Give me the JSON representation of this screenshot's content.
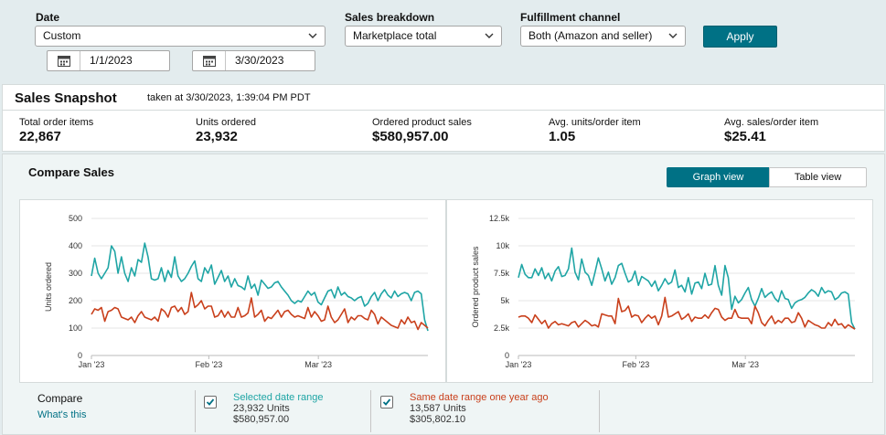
{
  "filters": {
    "date_label": "Date",
    "date_value": "Custom",
    "start_date": "1/1/2023",
    "end_date": "3/30/2023",
    "breakdown_label": "Sales breakdown",
    "breakdown_value": "Marketplace total",
    "fulfillment_label": "Fulfillment channel",
    "fulfillment_value": "Both (Amazon and seller)",
    "apply_label": "Apply"
  },
  "snapshot": {
    "title": "Sales Snapshot",
    "subtitle": "taken at 3/30/2023, 1:39:04 PM PDT",
    "metrics": [
      {
        "label": "Total order items",
        "value": "22,867"
      },
      {
        "label": "Units ordered",
        "value": "23,932"
      },
      {
        "label": "Ordered product sales",
        "value": "$580,957.00"
      },
      {
        "label": "Avg. units/order item",
        "value": "1.05"
      },
      {
        "label": "Avg. sales/order item",
        "value": "$25.41"
      }
    ]
  },
  "compare": {
    "title": "Compare Sales",
    "graph_view": "Graph view",
    "table_view": "Table view",
    "legend_title": "Compare",
    "whats_this": "What's this",
    "series": [
      {
        "name": "Selected date range",
        "line2": "23,932 Units",
        "line3": "$580,957.00",
        "color": "#1fa5a5"
      },
      {
        "name": "Same date range one year ago",
        "line2": "13,587 Units",
        "line3": "$305,802.10",
        "color": "#c9401c"
      }
    ]
  },
  "colors": {
    "accent": "#007185",
    "current": "#1fa5a5",
    "previous": "#c9401c"
  },
  "chart_data": [
    {
      "type": "line",
      "ylabel": "Units ordered",
      "ylim": [
        0,
        500
      ],
      "yticks": [
        "0",
        "100",
        "200",
        "300",
        "400",
        "500"
      ],
      "xticks": [
        "Jan '23",
        "Feb '23",
        "Mar '23"
      ],
      "grid": true,
      "series": [
        {
          "name": "Selected date range",
          "values": [
            290,
            355,
            300,
            280,
            300,
            320,
            400,
            380,
            300,
            360,
            300,
            270,
            320,
            290,
            350,
            340,
            410,
            360,
            280,
            275,
            280,
            320,
            270,
            310,
            285,
            360,
            290,
            270,
            280,
            300,
            325,
            345,
            280,
            270,
            320,
            300,
            330,
            260,
            285,
            310,
            270,
            290,
            250,
            280,
            255,
            250,
            240,
            290,
            245,
            260,
            220,
            275,
            260,
            245,
            250,
            265,
            270,
            250,
            235,
            220,
            200,
            190,
            200,
            195,
            215,
            235,
            220,
            230,
            195,
            185,
            210,
            235,
            240,
            210,
            250,
            220,
            230,
            215,
            210,
            200,
            210,
            215,
            180,
            190,
            215,
            230,
            200,
            225,
            240,
            220,
            210,
            235,
            215,
            225,
            230,
            225,
            200,
            230,
            235,
            225,
            130,
            90
          ]
        },
        {
          "name": "Same date range one year ago",
          "values": [
            150,
            170,
            165,
            175,
            125,
            160,
            165,
            175,
            170,
            140,
            135,
            130,
            140,
            120,
            145,
            160,
            140,
            135,
            130,
            140,
            125,
            170,
            160,
            140,
            175,
            180,
            160,
            175,
            150,
            160,
            230,
            175,
            185,
            200,
            170,
            180,
            180,
            140,
            145,
            165,
            140,
            160,
            140,
            140,
            175,
            140,
            145,
            155,
            210,
            140,
            150,
            165,
            125,
            140,
            135,
            150,
            165,
            140,
            160,
            165,
            150,
            140,
            145,
            140,
            135,
            175,
            140,
            160,
            145,
            125,
            130,
            180,
            140,
            120,
            130,
            150,
            170,
            120,
            140,
            130,
            145,
            145,
            135,
            130,
            165,
            150,
            115,
            140,
            130,
            120,
            110,
            105,
            100,
            130,
            115,
            140,
            120,
            125,
            95,
            120,
            110,
            100
          ]
        }
      ]
    },
    {
      "type": "line",
      "ylabel": "Ordered product sales",
      "ylim": [
        0,
        12500
      ],
      "yticks": [
        "0",
        "2.5k",
        "5k",
        "7.5k",
        "10k",
        "12.5k"
      ],
      "xticks": [
        "Jan '23",
        "Feb '23",
        "Mar '23"
      ],
      "grid": true,
      "series": [
        {
          "name": "Selected date range",
          "values": [
            7100,
            8300,
            7400,
            7100,
            7100,
            7900,
            7300,
            8000,
            7000,
            7500,
            6800,
            7700,
            8100,
            7200,
            7300,
            7900,
            9800,
            7600,
            6900,
            8800,
            7600,
            7300,
            6400,
            7600,
            8900,
            7900,
            6800,
            7600,
            6500,
            7100,
            8200,
            8400,
            7500,
            6700,
            6900,
            7700,
            6400,
            7200,
            7000,
            6800,
            6300,
            6800,
            5900,
            6400,
            7000,
            6500,
            6700,
            7800,
            6200,
            6400,
            5800,
            7100,
            5600,
            6600,
            6700,
            6100,
            7500,
            6400,
            6500,
            8200,
            6400,
            5500,
            8200,
            7100,
            4200,
            5400,
            4800,
            5100,
            5700,
            6200,
            5100,
            4500,
            5200,
            6100,
            5300,
            5600,
            5800,
            5200,
            4900,
            5900,
            5200,
            5100,
            4300,
            4800,
            5000,
            5100,
            5300,
            5700,
            6000,
            5800,
            5400,
            6200,
            5700,
            5900,
            5800,
            5100,
            5300,
            5700,
            5800,
            5600,
            3000,
            2400
          ]
        },
        {
          "name": "Same date range one year ago",
          "values": [
            3500,
            3600,
            3600,
            3400,
            3000,
            3700,
            3300,
            2900,
            3200,
            2500,
            2900,
            3100,
            2800,
            2900,
            2800,
            2700,
            3000,
            3100,
            2600,
            2900,
            3200,
            3000,
            2700,
            2800,
            2600,
            3800,
            3700,
            3600,
            3600,
            2900,
            5200,
            4000,
            4100,
            4500,
            3500,
            3700,
            3600,
            3000,
            3400,
            3700,
            3400,
            3600,
            2800,
            3600,
            5300,
            3500,
            3600,
            3800,
            4000,
            3300,
            3500,
            3800,
            3100,
            3500,
            3400,
            3400,
            3700,
            3400,
            3900,
            4300,
            4200,
            3500,
            3200,
            3400,
            3400,
            4200,
            3500,
            3400,
            3400,
            3400,
            2900,
            4500,
            3900,
            3000,
            2700,
            3200,
            3600,
            2900,
            3200,
            3000,
            3400,
            3400,
            3000,
            3100,
            3900,
            3400,
            2600,
            3200,
            3000,
            2800,
            2700,
            2500,
            2500,
            3000,
            2700,
            3300,
            2800,
            2900,
            2500,
            2800,
            2600,
            2400
          ]
        }
      ]
    }
  ]
}
